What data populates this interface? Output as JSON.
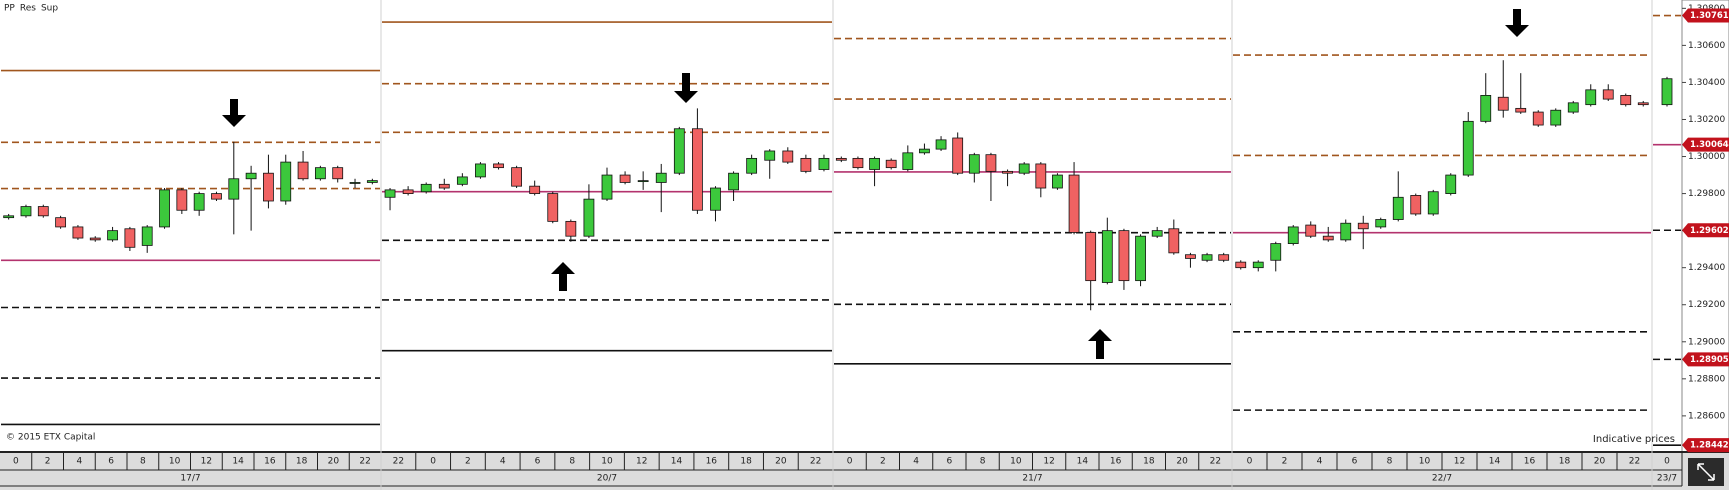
{
  "chart_data": {
    "type": "candlestick",
    "legend": [
      {
        "name": "PP",
        "color": "#b3336e"
      },
      {
        "name": "Res",
        "color": "#a0561e"
      },
      {
        "name": "Sup",
        "color": "#111111"
      }
    ],
    "up_color": "#3cc83c",
    "down_color": "#f06262",
    "ylim": [
      1.28405,
      1.30845
    ],
    "yticks": [
      {
        "value": 1.286,
        "label": "1.28600"
      },
      {
        "value": 1.288,
        "label": "1.28800"
      },
      {
        "value": 1.29,
        "label": "1.29000"
      },
      {
        "value": 1.292,
        "label": "1.29200"
      },
      {
        "value": 1.294,
        "label": "1.29400"
      },
      {
        "value": 1.296,
        "label": "1.29600"
      },
      {
        "value": 1.298,
        "label": "1.29800"
      },
      {
        "value": 1.3,
        "label": "1.30000"
      },
      {
        "value": 1.302,
        "label": "1.30200"
      },
      {
        "value": 1.304,
        "label": "1.30400"
      },
      {
        "value": 1.306,
        "label": "1.30600"
      },
      {
        "value": 1.308,
        "label": "1.30800"
      }
    ],
    "copyright": "© 2015 ETX Capital",
    "note": "Indicative prices",
    "days": [
      {
        "date": "17/7",
        "hours": [
          "0",
          "2",
          "4",
          "6",
          "8",
          "10",
          "12",
          "14",
          "16",
          "18",
          "20",
          "22"
        ],
        "pp": 1.2944,
        "resistance": [
          1.29827,
          1.30077,
          1.30464
        ],
        "support": [
          1.29185,
          1.28804,
          1.28554
        ],
        "candles": [
          [
            1.2967,
            1.2969,
            1.2966,
            1.2968
          ],
          [
            1.2968,
            1.2974,
            1.2967,
            1.2973
          ],
          [
            1.2973,
            1.2974,
            1.2967,
            1.2968
          ],
          [
            1.2967,
            1.2968,
            1.2961,
            1.2962
          ],
          [
            1.2962,
            1.2963,
            1.2955,
            1.2956
          ],
          [
            1.2956,
            1.2957,
            1.2954,
            1.2955
          ],
          [
            1.2955,
            1.2962,
            1.2954,
            1.296
          ],
          [
            1.2961,
            1.2962,
            1.2949,
            1.2951
          ],
          [
            1.2952,
            1.2963,
            1.2948,
            1.2962
          ],
          [
            1.2962,
            1.2983,
            1.2961,
            1.2982
          ],
          [
            1.2982,
            1.2983,
            1.2969,
            1.2971
          ],
          [
            1.2971,
            1.2981,
            1.2968,
            1.298
          ],
          [
            1.298,
            1.2981,
            1.2976,
            1.2977
          ],
          [
            1.2977,
            1.3008,
            1.2958,
            1.2988
          ],
          [
            1.2988,
            1.2995,
            1.296,
            1.2991
          ],
          [
            1.2991,
            1.3001,
            1.2972,
            1.2976
          ],
          [
            1.2976,
            1.3001,
            1.2974,
            1.2997
          ],
          [
            1.2997,
            1.3003,
            1.2987,
            1.2988
          ],
          [
            1.2988,
            1.2995,
            1.2987,
            1.2994
          ],
          [
            1.2994,
            1.2995,
            1.2986,
            1.2988
          ],
          [
            1.2986,
            1.2988,
            1.2983,
            1.2986
          ],
          [
            1.2986,
            1.2988,
            1.2985,
            1.2987
          ]
        ]
      },
      {
        "date": "20/7",
        "hours": [
          "22",
          "0",
          "2",
          "4",
          "6",
          "8",
          "10",
          "12",
          "14",
          "16",
          "18",
          "20",
          "22"
        ],
        "pp": 1.2981,
        "resistance": [
          1.30131,
          1.30393,
          1.30726
        ],
        "support": [
          1.29548,
          1.29226,
          1.28952
        ],
        "candles": [
          [
            1.2978,
            1.2983,
            1.2971,
            1.2982
          ],
          [
            1.2982,
            1.2984,
            1.2979,
            1.298
          ],
          [
            1.2981,
            1.2986,
            1.298,
            1.2985
          ],
          [
            1.2985,
            1.2988,
            1.2982,
            1.2983
          ],
          [
            1.2985,
            1.2991,
            1.2984,
            1.2989
          ],
          [
            1.2989,
            1.2997,
            1.2988,
            1.2996
          ],
          [
            1.2996,
            1.2997,
            1.2993,
            1.2994
          ],
          [
            1.2994,
            1.2995,
            1.2983,
            1.2984
          ],
          [
            1.2984,
            1.2987,
            1.2979,
            1.298
          ],
          [
            1.298,
            1.2981,
            1.2964,
            1.2965
          ],
          [
            1.2965,
            1.2966,
            1.2954,
            1.2957
          ],
          [
            1.2957,
            1.2985,
            1.2956,
            1.2977
          ],
          [
            1.2977,
            1.2994,
            1.2976,
            1.299
          ],
          [
            1.299,
            1.2992,
            1.2985,
            1.2986
          ],
          [
            1.2987,
            1.2992,
            1.2982,
            1.2987
          ],
          [
            1.2986,
            1.2996,
            1.297,
            1.2991
          ],
          [
            1.2991,
            1.3016,
            1.299,
            1.3015
          ],
          [
            1.3015,
            1.3026,
            1.2969,
            1.2971
          ],
          [
            1.2971,
            1.2984,
            1.2965,
            1.2983
          ],
          [
            1.2982,
            1.2992,
            1.2976,
            1.2991
          ],
          [
            1.2991,
            1.3001,
            1.299,
            1.2999
          ],
          [
            1.2998,
            1.3004,
            1.2988,
            1.3003
          ],
          [
            1.3003,
            1.3005,
            1.2996,
            1.2997
          ],
          [
            1.2999,
            1.3001,
            1.2991,
            1.2992
          ],
          [
            1.2993,
            1.3001,
            1.2992,
            1.2999
          ]
        ]
      },
      {
        "date": "21/7",
        "hours": [
          "0",
          "2",
          "4",
          "6",
          "8",
          "10",
          "12",
          "14",
          "16",
          "18",
          "20",
          "22"
        ],
        "pp": 1.29917,
        "resistance": [
          1.3031,
          1.30637
        ],
        "support": [
          1.29589,
          1.29202,
          1.28881
        ],
        "candles": [
          [
            1.2999,
            1.3,
            1.2997,
            1.2998
          ],
          [
            1.2999,
            1.3,
            1.2993,
            1.2994
          ],
          [
            1.2993,
            1.3,
            1.2984,
            1.2999
          ],
          [
            1.2998,
            1.2999,
            1.2993,
            1.2994
          ],
          [
            1.2993,
            1.3006,
            1.2992,
            1.3002
          ],
          [
            1.3002,
            1.3007,
            1.3001,
            1.3004
          ],
          [
            1.3004,
            1.3011,
            1.3003,
            1.3009
          ],
          [
            1.301,
            1.3013,
            1.299,
            1.2991
          ],
          [
            1.2991,
            1.3002,
            1.2986,
            1.3001
          ],
          [
            1.3001,
            1.3002,
            1.2976,
            1.2992
          ],
          [
            1.2992,
            1.2993,
            1.2984,
            1.2991
          ],
          [
            1.2991,
            1.2997,
            1.299,
            1.2996
          ],
          [
            1.2996,
            1.2997,
            1.2978,
            1.2983
          ],
          [
            1.2983,
            1.2991,
            1.2982,
            1.299
          ],
          [
            1.299,
            1.2997,
            1.2958,
            1.2959
          ],
          [
            1.2959,
            1.296,
            1.2917,
            1.2933
          ],
          [
            1.2932,
            1.2967,
            1.2931,
            1.296
          ],
          [
            1.296,
            1.2961,
            1.2928,
            1.2933
          ],
          [
            1.2933,
            1.2958,
            1.293,
            1.2957
          ],
          [
            1.2957,
            1.2962,
            1.2956,
            1.296
          ],
          [
            1.2961,
            1.2966,
            1.2947,
            1.2948
          ],
          [
            1.2947,
            1.2948,
            1.294,
            1.2945
          ],
          [
            1.2944,
            1.2948,
            1.2943,
            1.2947
          ],
          [
            1.2947,
            1.2948,
            1.2943,
            1.2944
          ]
        ]
      },
      {
        "date": "22/7",
        "hours": [
          "0",
          "2",
          "4",
          "6",
          "8",
          "10",
          "12",
          "14",
          "16",
          "18",
          "20",
          "22"
        ],
        "pp": 1.29589,
        "resistance": [
          1.30006,
          1.30548
        ],
        "support": [
          1.29054,
          1.28631
        ],
        "candles": [
          [
            1.2943,
            1.2944,
            1.2939,
            1.294
          ],
          [
            1.294,
            1.2944,
            1.2938,
            1.2943
          ],
          [
            1.2944,
            1.2954,
            1.2938,
            1.2953
          ],
          [
            1.2953,
            1.2963,
            1.2952,
            1.2962
          ],
          [
            1.2963,
            1.2965,
            1.2956,
            1.2957
          ],
          [
            1.2957,
            1.2962,
            1.2954,
            1.2955
          ],
          [
            1.2955,
            1.2966,
            1.2954,
            1.2964
          ],
          [
            1.2964,
            1.2968,
            1.295,
            1.2961
          ],
          [
            1.2962,
            1.2967,
            1.2961,
            1.2966
          ],
          [
            1.2966,
            1.2992,
            1.2965,
            1.2978
          ],
          [
            1.2979,
            1.298,
            1.2968,
            1.2969
          ],
          [
            1.2969,
            1.2982,
            1.2968,
            1.2981
          ],
          [
            1.298,
            1.2991,
            1.2979,
            1.299
          ],
          [
            1.299,
            1.3024,
            1.2989,
            1.3019
          ],
          [
            1.3019,
            1.3045,
            1.3018,
            1.3033
          ],
          [
            1.3032,
            1.3052,
            1.3021,
            1.3025
          ],
          [
            1.3026,
            1.3045,
            1.3023,
            1.3024
          ],
          [
            1.3024,
            1.3025,
            1.3016,
            1.3017
          ],
          [
            1.3017,
            1.3026,
            1.3016,
            1.3025
          ],
          [
            1.3024,
            1.303,
            1.3023,
            1.3029
          ],
          [
            1.3028,
            1.3039,
            1.3027,
            1.3036
          ],
          [
            1.3036,
            1.3039,
            1.303,
            1.3031
          ],
          [
            1.3033,
            1.3034,
            1.3027,
            1.3028
          ],
          [
            1.3029,
            1.303,
            1.3027,
            1.3028
          ]
        ]
      },
      {
        "date": "23/7",
        "hours": [
          "0"
        ],
        "pp": {
          "value": 1.30064,
          "label": "1.30064"
        },
        "resistance": [
          {
            "value": 1.30761,
            "label": "1.30761"
          }
        ],
        "support": [
          {
            "value": 1.29602,
            "label": "1.29602"
          },
          {
            "value": 1.28905,
            "label": "1.28905"
          },
          {
            "value": 1.28442,
            "label": "1.28442"
          }
        ],
        "candles": [
          [
            1.3028,
            1.3043,
            1.3027,
            1.3042
          ]
        ]
      }
    ]
  }
}
